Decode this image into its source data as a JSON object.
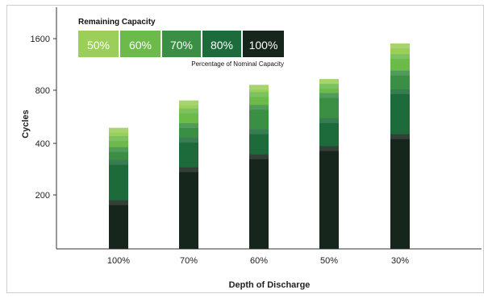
{
  "chart_data": {
    "type": "bar",
    "stacked": true,
    "title": "",
    "xlabel": "Depth of Discharge",
    "ylabel": "Cycles",
    "y_scale": "non-linear",
    "y_ticks": [
      200,
      400,
      800,
      1600
    ],
    "grid": false,
    "categories": [
      "100%",
      "70%",
      "60%",
      "50%",
      "30%"
    ],
    "legend": {
      "title": "Remaining Capacity",
      "subtitle": "Percentage of Nominal Capacity",
      "placement": "top-left"
    },
    "series": [
      {
        "name": "100%",
        "color": "#17261c",
        "values": [
          180,
          290,
          345,
          385,
          450
        ]
      },
      {
        "name": "80%",
        "color": "#1d6b3a",
        "values": [
          320,
          430,
          480,
          555,
          810
        ]
      },
      {
        "name": "70%",
        "color": "#3a8f45",
        "values": [
          380,
          520,
          660,
          770,
          1040
        ]
      },
      {
        "name": "60%",
        "color": "#6cba4a",
        "values": [
          440,
          630,
          780,
          870,
          1300
        ]
      },
      {
        "name": "50%",
        "color": "#9bcf5a",
        "values": [
          490,
          700,
          860,
          930,
          1500
        ]
      }
    ]
  }
}
